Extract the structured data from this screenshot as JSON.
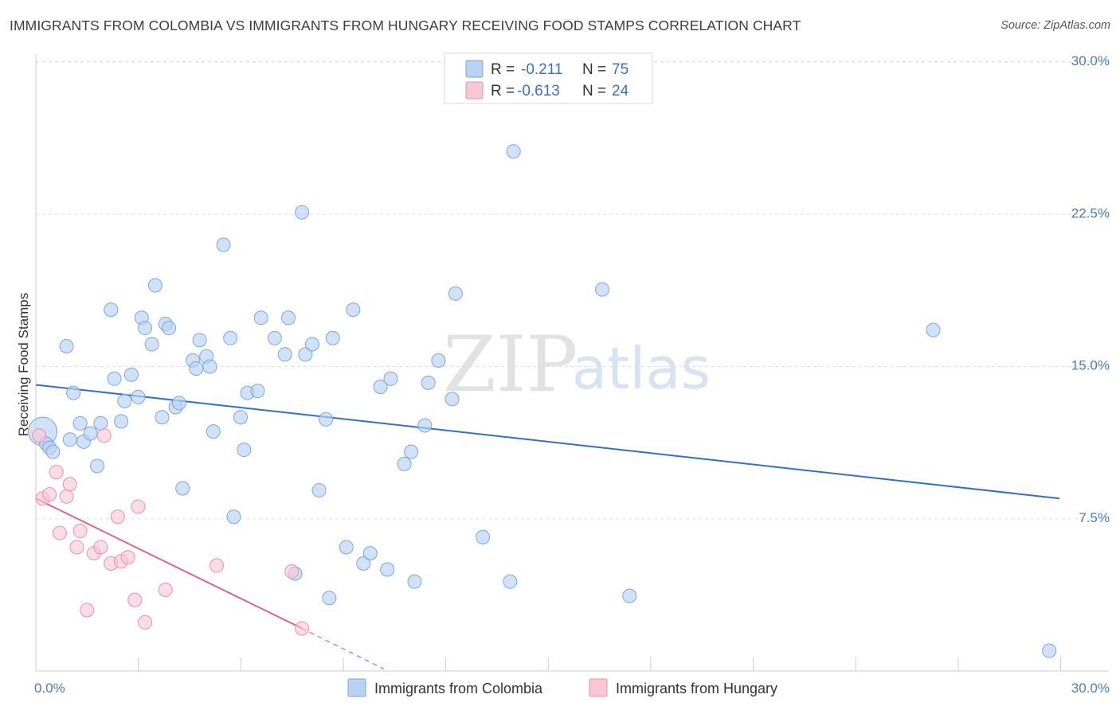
{
  "title": "IMMIGRANTS FROM COLOMBIA VS IMMIGRANTS FROM HUNGARY RECEIVING FOOD STAMPS CORRELATION CHART",
  "source": "Source: ZipAtlas.com",
  "watermark": {
    "zip": "ZIP",
    "atlas": "atlas"
  },
  "colors": {
    "colombia_fill": "#b8d3f2",
    "colombia_stroke": "#7aa7dc",
    "colombia_line": "#2f6fcf",
    "hungary_fill": "#f9c6d4",
    "hungary_stroke": "#e98fab",
    "hungary_line": "#e0638c",
    "grid": "#dddddd",
    "tick_text": "#4a7cc0"
  },
  "legend": {
    "rows": [
      {
        "r_label": "R =",
        "r_value": "-0.211",
        "n_label": "N =",
        "n_value": "75"
      },
      {
        "r_label": "R =",
        "r_value": "-0.613",
        "n_label": "N =",
        "n_value": "24"
      }
    ]
  },
  "bottom_legend": {
    "series1": "Immigrants from Colombia",
    "series2": "Immigrants from Hungary"
  },
  "chart_data": {
    "type": "scatter",
    "title": "IMMIGRANTS FROM COLOMBIA VS IMMIGRANTS FROM HUNGARY RECEIVING FOOD STAMPS CORRELATION CHART",
    "xlabel": "",
    "ylabel": "Receiving Food Stamps",
    "xlim": [
      0,
      30
    ],
    "ylim": [
      0,
      30
    ],
    "x_tick_labels": [
      "0.0%",
      "30.0%"
    ],
    "y_ticks": [
      7.5,
      15.0,
      22.5,
      30.0
    ],
    "y_tick_labels": [
      "7.5%",
      "15.0%",
      "22.5%",
      "30.0%"
    ],
    "grid": "horizontal dashed",
    "legend_position": "top-center",
    "series": [
      {
        "name": "Immigrants from Colombia",
        "r": -0.211,
        "n": 75,
        "trend": {
          "x": [
            0,
            30
          ],
          "y": [
            14.1,
            8.5
          ],
          "dashed_after": null
        },
        "points": [
          [
            0.2,
            11.8
          ],
          [
            0.3,
            11.2
          ],
          [
            0.4,
            11.0
          ],
          [
            0.5,
            10.8
          ],
          [
            1.0,
            11.4
          ],
          [
            0.9,
            16.0
          ],
          [
            1.1,
            13.7
          ],
          [
            1.3,
            12.2
          ],
          [
            1.4,
            11.3
          ],
          [
            1.6,
            11.7
          ],
          [
            1.9,
            12.2
          ],
          [
            1.8,
            10.1
          ],
          [
            2.2,
            17.8
          ],
          [
            2.3,
            14.4
          ],
          [
            2.5,
            12.3
          ],
          [
            2.6,
            13.3
          ],
          [
            2.8,
            14.6
          ],
          [
            3.0,
            13.5
          ],
          [
            3.1,
            17.4
          ],
          [
            3.2,
            16.9
          ],
          [
            3.4,
            16.1
          ],
          [
            3.5,
            19.0
          ],
          [
            3.7,
            12.5
          ],
          [
            3.8,
            17.1
          ],
          [
            3.9,
            16.9
          ],
          [
            4.1,
            13.0
          ],
          [
            4.2,
            13.2
          ],
          [
            4.3,
            9.0
          ],
          [
            4.6,
            15.3
          ],
          [
            4.7,
            14.9
          ],
          [
            4.8,
            16.3
          ],
          [
            5.0,
            15.5
          ],
          [
            5.1,
            15.0
          ],
          [
            5.2,
            11.8
          ],
          [
            5.5,
            21.0
          ],
          [
            5.7,
            16.4
          ],
          [
            5.8,
            7.6
          ],
          [
            6.0,
            12.5
          ],
          [
            6.1,
            10.9
          ],
          [
            6.2,
            13.7
          ],
          [
            6.5,
            13.8
          ],
          [
            6.6,
            17.4
          ],
          [
            7.0,
            16.4
          ],
          [
            7.3,
            15.6
          ],
          [
            7.4,
            17.4
          ],
          [
            7.6,
            4.8
          ],
          [
            7.8,
            22.6
          ],
          [
            7.9,
            15.6
          ],
          [
            8.1,
            16.1
          ],
          [
            8.3,
            8.9
          ],
          [
            8.5,
            12.4
          ],
          [
            8.6,
            3.6
          ],
          [
            8.7,
            16.4
          ],
          [
            9.1,
            6.1
          ],
          [
            9.3,
            17.8
          ],
          [
            9.6,
            5.3
          ],
          [
            9.8,
            5.8
          ],
          [
            10.1,
            14.0
          ],
          [
            10.3,
            5.0
          ],
          [
            10.4,
            14.4
          ],
          [
            10.8,
            10.2
          ],
          [
            11.0,
            10.8
          ],
          [
            11.1,
            4.4
          ],
          [
            11.4,
            12.1
          ],
          [
            11.5,
            14.2
          ],
          [
            11.8,
            15.3
          ],
          [
            12.2,
            13.4
          ],
          [
            12.3,
            18.6
          ],
          [
            13.1,
            6.6
          ],
          [
            13.9,
            4.4
          ],
          [
            14.0,
            25.6
          ],
          [
            16.6,
            18.8
          ],
          [
            17.4,
            3.7
          ],
          [
            26.3,
            16.8
          ],
          [
            29.7,
            1.0
          ]
        ]
      },
      {
        "name": "Immigrants from Hungary",
        "r": -0.613,
        "n": 24,
        "trend": {
          "x": [
            0,
            7.8
          ],
          "y": [
            8.5,
            2.1
          ],
          "dashed_extension_to": [
            10.2,
            0.1
          ]
        },
        "points": [
          [
            0.1,
            11.6
          ],
          [
            0.2,
            8.5
          ],
          [
            0.4,
            8.7
          ],
          [
            0.6,
            9.8
          ],
          [
            0.7,
            6.8
          ],
          [
            0.9,
            8.6
          ],
          [
            1.0,
            9.2
          ],
          [
            1.2,
            6.1
          ],
          [
            1.3,
            6.9
          ],
          [
            1.5,
            3.0
          ],
          [
            1.7,
            5.8
          ],
          [
            1.9,
            6.1
          ],
          [
            2.0,
            11.6
          ],
          [
            2.2,
            5.3
          ],
          [
            2.4,
            7.6
          ],
          [
            2.5,
            5.4
          ],
          [
            2.7,
            5.6
          ],
          [
            2.9,
            3.5
          ],
          [
            3.0,
            8.1
          ],
          [
            3.2,
            2.4
          ],
          [
            3.8,
            4.0
          ],
          [
            5.3,
            5.2
          ],
          [
            7.5,
            4.9
          ],
          [
            7.8,
            2.1
          ]
        ]
      }
    ]
  }
}
